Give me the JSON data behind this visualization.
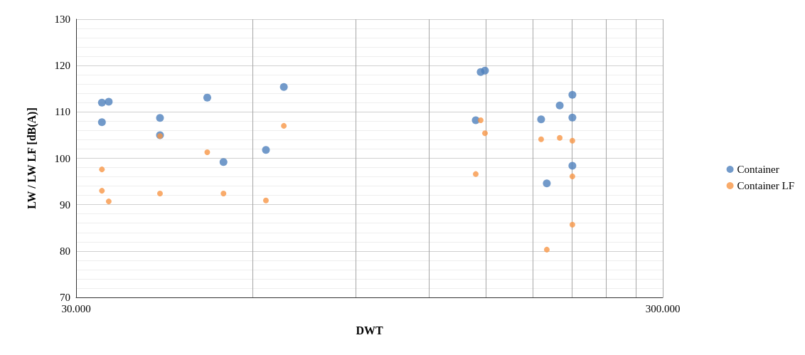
{
  "chart_data": {
    "type": "scatter",
    "xlabel": "DWT",
    "ylabel": "LW / LW LF [dB(A)]",
    "log": "x",
    "grid": true,
    "legend": "right",
    "marker": "circle",
    "xlim": [
      30000,
      300000
    ],
    "xticks": [
      {
        "value": 30000,
        "label": "30.000"
      },
      {
        "value": 60000,
        "label": null
      },
      {
        "value": 90000,
        "label": null
      },
      {
        "value": 120000,
        "label": null
      },
      {
        "value": 150000,
        "label": null
      },
      {
        "value": 180000,
        "label": null
      },
      {
        "value": 210000,
        "label": null
      },
      {
        "value": 240000,
        "label": null
      },
      {
        "value": 270000,
        "label": null
      },
      {
        "value": 300000,
        "label": "300.000"
      }
    ],
    "ylim": [
      70,
      130
    ],
    "yticks": [
      70,
      {
        "value": 72,
        "label": null
      },
      {
        "value": 74,
        "label": null
      },
      {
        "value": 76,
        "label": null
      },
      {
        "value": 78,
        "label": null
      },
      80,
      {
        "value": 82,
        "label": null
      },
      {
        "value": 84,
        "label": null
      },
      {
        "value": 86,
        "label": null
      },
      {
        "value": 88,
        "label": null
      },
      90,
      {
        "value": 92,
        "label": null
      },
      {
        "value": 94,
        "label": null
      },
      {
        "value": 96,
        "label": null
      },
      {
        "value": 98,
        "label": null
      },
      100,
      {
        "value": 102,
        "label": null
      },
      {
        "value": 104,
        "label": null
      },
      {
        "value": 106,
        "label": null
      },
      {
        "value": 108,
        "label": null
      },
      110,
      {
        "value": 112,
        "label": null
      },
      {
        "value": 114,
        "label": null
      },
      {
        "value": 116,
        "label": null
      },
      {
        "value": 118,
        "label": null
      },
      120,
      {
        "value": 122,
        "label": null
      },
      {
        "value": 124,
        "label": null
      },
      {
        "value": 126,
        "label": null
      },
      {
        "value": 128,
        "label": null
      },
      130
    ],
    "series": [
      {
        "name": "Container",
        "color": "#4f81bd",
        "x": [
          33200,
          33200,
          34100,
          41700,
          41700,
          50200,
          53500,
          63200,
          67800,
          144000,
          146800,
          149300,
          186100,
          190300,
          200200,
          210400,
          210400,
          210400
        ],
        "values": [
          112,
          107.8,
          112.2,
          108.7,
          105,
          113.1,
          99.2,
          101.8,
          115.4,
          108.2,
          118.6,
          118.9,
          108.4,
          94.6,
          111.4,
          113.7,
          108.8,
          98.4
        ]
      },
      {
        "name": "Container LF",
        "color": "#f79646",
        "x": [
          33200,
          33200,
          34100,
          41700,
          41700,
          50200,
          53500,
          63200,
          67800,
          144000,
          146800,
          149300,
          186100,
          190300,
          200200,
          210400,
          210400,
          210400
        ],
        "values": [
          97.6,
          93,
          90.7,
          104.8,
          92.4,
          101.3,
          92.4,
          90.9,
          107,
          96.6,
          108.2,
          105.4,
          104.1,
          80.3,
          104.4,
          103.8,
          96.1,
          85.7
        ]
      }
    ]
  }
}
